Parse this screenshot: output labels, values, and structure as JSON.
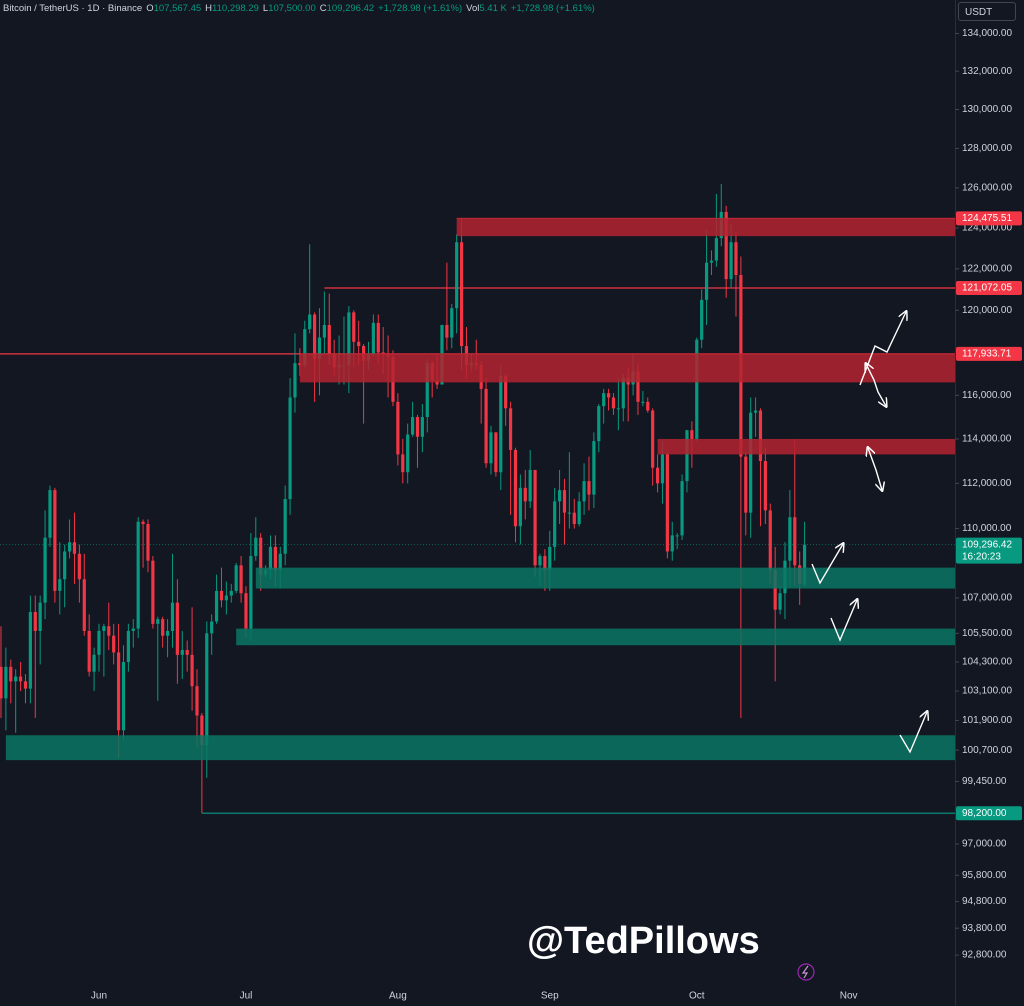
{
  "header": {
    "symbol": "Bitcoin / TetherUS · 1D · Binance",
    "fields": [
      {
        "key": "O",
        "value": "107,567.45"
      },
      {
        "key": "H",
        "value": "110,298.29"
      },
      {
        "key": "L",
        "value": "107,500.00"
      },
      {
        "key": "C",
        "value": "109,296.42"
      },
      {
        "key": "",
        "value": "+1,728.98 (+1.61%)"
      },
      {
        "key": "Vol",
        "value": "5.41 K"
      },
      {
        "key": "",
        "value": "+1,728.98 (+1.61%)"
      }
    ],
    "currency": "USDT"
  },
  "watermark": "@TedPillows",
  "chart_data": {
    "type": "candlestick",
    "log_scale": true,
    "up_color": "#089981",
    "down_color": "#f23645",
    "ylim": [
      91700,
      135800
    ],
    "xlim": [
      0.8,
      195.7
    ],
    "yticks": [
      {
        "value": 134000,
        "label": "134,000.00"
      },
      {
        "value": 132000,
        "label": "132,000.00"
      },
      {
        "value": 130000,
        "label": "130,000.00"
      },
      {
        "value": 128000,
        "label": "128,000.00"
      },
      {
        "value": 126000,
        "label": "126,000.00"
      },
      {
        "value": 124000,
        "label": "124,000.00"
      },
      {
        "value": 122000,
        "label": "122,000.00"
      },
      {
        "value": 120000,
        "label": "120,000.00"
      },
      {
        "value": 116000,
        "label": "116,000.00"
      },
      {
        "value": 114000,
        "label": "114,000.00"
      },
      {
        "value": 112000,
        "label": "112,000.00"
      },
      {
        "value": 110000,
        "label": "110,000.00"
      },
      {
        "value": 107000,
        "label": "107,000.00"
      },
      {
        "value": 105500,
        "label": "105,500.00"
      },
      {
        "value": 104300,
        "label": "104,300.00"
      },
      {
        "value": 103100,
        "label": "103,100.00"
      },
      {
        "value": 101900,
        "label": "101,900.00"
      },
      {
        "value": 100700,
        "label": "100,700.00"
      },
      {
        "value": 99450,
        "label": "99,450.00"
      },
      {
        "value": 97000,
        "label": "97,000.00"
      },
      {
        "value": 95800,
        "label": "95,800.00"
      },
      {
        "value": 94800,
        "label": "94,800.00"
      },
      {
        "value": 93800,
        "label": "93,800.00"
      },
      {
        "value": 92800,
        "label": "92,800.00"
      }
    ],
    "xticks": [
      {
        "value": 21,
        "label": "Jun"
      },
      {
        "value": 51,
        "label": "Jul"
      },
      {
        "value": 82,
        "label": "Aug"
      },
      {
        "value": 113,
        "label": "Sep"
      },
      {
        "value": 143,
        "label": "Oct"
      },
      {
        "value": 174,
        "label": "Nov"
      }
    ],
    "zones": [
      {
        "low": 123600,
        "high": 124500,
        "from": 94,
        "color": "#b3232f"
      },
      {
        "low": 116600,
        "high": 117960,
        "from": 62,
        "color": "#b3232f"
      },
      {
        "low": 113300,
        "high": 114000,
        "from": 135,
        "color": "#b3232f"
      },
      {
        "low": 107400,
        "high": 108300,
        "from": 53,
        "color": "#0b7563"
      },
      {
        "low": 105000,
        "high": 105700,
        "from": 49,
        "color": "#0b7563"
      },
      {
        "low": 100300,
        "high": 101300,
        "from": 2,
        "color": "#0b7563"
      }
    ],
    "levels": [
      {
        "value": 124475.51,
        "label": "124,475.51",
        "from": 94,
        "color": "#f23645"
      },
      {
        "value": 121072.05,
        "label": "121,072.05",
        "from": 67,
        "color": "#f23645"
      },
      {
        "value": 117933.71,
        "label": "117,933.71",
        "from": 0,
        "color": "#f23645"
      },
      {
        "value": 98200,
        "label": "98,200.00",
        "from": 42,
        "color": "#089981"
      }
    ],
    "last_price": {
      "value": 109296.42,
      "label": "109,296.42",
      "countdown": "16:20:23",
      "color": "#089981"
    },
    "candles": [
      [
        104600,
        105000,
        103800,
        104100
      ],
      [
        104100,
        105800,
        102000,
        102800
      ],
      [
        102800,
        104900,
        101500,
        104100
      ],
      [
        104100,
        104400,
        102600,
        103500
      ],
      [
        103500,
        104000,
        101400,
        103700
      ],
      [
        103700,
        104300,
        103100,
        103500
      ],
      [
        103500,
        103800,
        102600,
        103200
      ],
      [
        103200,
        107100,
        102600,
        106400
      ],
      [
        106400,
        107100,
        102000,
        105600
      ],
      [
        105600,
        107100,
        104200,
        106800
      ],
      [
        106800,
        110800,
        106100,
        109600
      ],
      [
        109600,
        111900,
        109200,
        111700
      ],
      [
        111700,
        111800,
        106800,
        107300
      ],
      [
        107300,
        109400,
        106300,
        107800
      ],
      [
        107800,
        109300,
        106600,
        109000
      ],
      [
        109000,
        110400,
        108700,
        109400
      ],
      [
        109400,
        110700,
        107600,
        108900
      ],
      [
        108900,
        109300,
        106800,
        107800
      ],
      [
        107800,
        108900,
        105400,
        105600
      ],
      [
        105600,
        106300,
        103700,
        103900
      ],
      [
        103900,
        104900,
        103100,
        104600
      ],
      [
        104600,
        105900,
        103900,
        105600
      ],
      [
        105600,
        105900,
        103700,
        105800
      ],
      [
        105800,
        106800,
        104800,
        105400
      ],
      [
        105400,
        105900,
        104200,
        104700
      ],
      [
        104700,
        105900,
        100400,
        101500
      ],
      [
        101500,
        105000,
        101100,
        104300
      ],
      [
        104300,
        105900,
        103900,
        105600
      ],
      [
        105600,
        106100,
        104900,
        105700
      ],
      [
        105700,
        110500,
        105300,
        110300
      ],
      [
        110300,
        110400,
        108300,
        110200
      ],
      [
        110200,
        110400,
        108100,
        108600
      ],
      [
        108600,
        108800,
        105700,
        105900
      ],
      [
        105900,
        106200,
        102700,
        106100
      ],
      [
        106100,
        106200,
        104900,
        105400
      ],
      [
        105400,
        106100,
        104500,
        105600
      ],
      [
        105600,
        108900,
        104900,
        106800
      ],
      [
        106800,
        107800,
        103400,
        104600
      ],
      [
        104600,
        105600,
        103600,
        104800
      ],
      [
        104800,
        105200,
        103900,
        104600
      ],
      [
        104600,
        106600,
        102300,
        103300
      ],
      [
        103300,
        104000,
        100800,
        102100
      ],
      [
        102100,
        102200,
        98200,
        100900
      ],
      [
        100900,
        106000,
        99600,
        105500
      ],
      [
        105500,
        106300,
        104600,
        106000
      ],
      [
        106000,
        108000,
        105900,
        107300
      ],
      [
        107300,
        108300,
        106600,
        106900
      ],
      [
        106900,
        107700,
        106300,
        107100
      ],
      [
        107100,
        107600,
        106800,
        107300
      ],
      [
        107300,
        108500,
        107200,
        108400
      ],
      [
        108400,
        108800,
        106800,
        107200
      ],
      [
        107200,
        107500,
        105300,
        105700
      ],
      [
        105700,
        109800,
        105200,
        108800
      ],
      [
        108800,
        110500,
        108600,
        109600
      ],
      [
        109600,
        109800,
        107300,
        108000
      ],
      [
        108000,
        108400,
        107900,
        108200
      ],
      [
        108200,
        109700,
        107800,
        109200
      ],
      [
        109200,
        109700,
        107500,
        108200
      ],
      [
        108200,
        109200,
        107400,
        108900
      ],
      [
        108900,
        111900,
        108400,
        111300
      ],
      [
        111300,
        116800,
        110600,
        115900
      ],
      [
        115900,
        118900,
        115200,
        117500
      ],
      [
        117500,
        118200,
        116900,
        117400
      ],
      [
        117400,
        119500,
        117300,
        119100
      ],
      [
        119100,
        123200,
        118900,
        119800
      ],
      [
        119800,
        119900,
        115700,
        117700
      ],
      [
        117700,
        120100,
        116000,
        118700
      ],
      [
        118700,
        120900,
        117900,
        119300
      ],
      [
        119300,
        120800,
        117400,
        117900
      ],
      [
        117900,
        118600,
        116900,
        117300
      ],
      [
        117300,
        118800,
        116500,
        117400
      ],
      [
        117400,
        119700,
        116500,
        117400
      ],
      [
        117400,
        120200,
        116100,
        119900
      ],
      [
        119900,
        120000,
        117300,
        118500
      ],
      [
        118500,
        119500,
        117400,
        118300
      ],
      [
        118300,
        118400,
        114700,
        117600
      ],
      [
        117600,
        118500,
        117200,
        117900
      ],
      [
        117900,
        119800,
        117800,
        119400
      ],
      [
        119400,
        119800,
        117500,
        118000
      ],
      [
        118000,
        119200,
        117000,
        117900
      ],
      [
        117900,
        118800,
        115900,
        117800
      ],
      [
        117800,
        118100,
        115500,
        115700
      ],
      [
        115700,
        116100,
        112800,
        113300
      ],
      [
        113300,
        114000,
        112000,
        112500
      ],
      [
        112500,
        114700,
        112000,
        114200
      ],
      [
        114200,
        115700,
        114100,
        115000
      ],
      [
        115000,
        115100,
        112700,
        114100
      ],
      [
        114100,
        115600,
        113400,
        115000
      ],
      [
        115000,
        117700,
        114300,
        117500
      ],
      [
        117500,
        117600,
        115900,
        116700
      ],
      [
        116700,
        117900,
        116300,
        116500
      ],
      [
        116500,
        119300,
        116500,
        119300
      ],
      [
        119300,
        122300,
        118100,
        118700
      ],
      [
        118700,
        120300,
        118200,
        120100
      ],
      [
        120100,
        123700,
        118900,
        123300
      ],
      [
        123300,
        124500,
        117200,
        118300
      ],
      [
        118300,
        119200,
        116800,
        117400
      ],
      [
        117400,
        117900,
        117100,
        117500
      ],
      [
        117500,
        118600,
        117200,
        117400
      ],
      [
        117400,
        117600,
        114700,
        116300
      ],
      [
        116300,
        116800,
        112700,
        112900
      ],
      [
        112900,
        114600,
        112400,
        114300
      ],
      [
        114300,
        114300,
        112300,
        112500
      ],
      [
        112500,
        117400,
        111700,
        116900
      ],
      [
        116900,
        117000,
        114600,
        115400
      ],
      [
        115400,
        115700,
        110600,
        113500
      ],
      [
        113500,
        113600,
        109400,
        110100
      ],
      [
        110100,
        112400,
        109300,
        111800
      ],
      [
        111800,
        112600,
        110400,
        111200
      ],
      [
        111200,
        113500,
        110900,
        112600
      ],
      [
        112600,
        112600,
        107900,
        108400
      ],
      [
        108400,
        108900,
        107500,
        108800
      ],
      [
        108800,
        109100,
        107300,
        108200
      ],
      [
        108200,
        109900,
        107300,
        109200
      ],
      [
        109200,
        111800,
        108600,
        111200
      ],
      [
        111200,
        112600,
        110200,
        111700
      ],
      [
        111700,
        112200,
        109300,
        110700
      ],
      [
        110700,
        113400,
        110000,
        110700
      ],
      [
        110700,
        111300,
        110000,
        110200
      ],
      [
        110200,
        111600,
        110100,
        111200
      ],
      [
        111200,
        112900,
        110600,
        112100
      ],
      [
        112100,
        113200,
        110800,
        111500
      ],
      [
        111500,
        114300,
        110900,
        113900
      ],
      [
        113900,
        115600,
        113400,
        115500
      ],
      [
        115500,
        116300,
        114700,
        116100
      ],
      [
        116100,
        116300,
        115300,
        115900
      ],
      [
        115900,
        116100,
        115100,
        115400
      ],
      [
        115400,
        116800,
        114400,
        115400
      ],
      [
        115400,
        117000,
        114800,
        116800
      ],
      [
        116800,
        117300,
        114800,
        116500
      ],
      [
        116500,
        117900,
        116000,
        117100
      ],
      [
        117100,
        117500,
        115100,
        115700
      ],
      [
        115700,
        116200,
        115500,
        115700
      ],
      [
        115700,
        115900,
        115200,
        115300
      ],
      [
        115300,
        115400,
        111900,
        112700
      ],
      [
        112700,
        113300,
        111600,
        112000
      ],
      [
        112000,
        113900,
        111100,
        113300
      ],
      [
        113300,
        113400,
        108700,
        109000
      ],
      [
        109000,
        110300,
        108600,
        109700
      ],
      [
        109700,
        109800,
        109100,
        109700
      ],
      [
        109700,
        112400,
        109500,
        112100
      ],
      [
        112100,
        114400,
        111600,
        114400
      ],
      [
        114400,
        114800,
        112700,
        114000
      ],
      [
        114000,
        118700,
        113900,
        118600
      ],
      [
        118600,
        121000,
        118200,
        120500
      ],
      [
        120500,
        123900,
        119300,
        122300
      ],
      [
        122300,
        122900,
        121700,
        122400
      ],
      [
        122400,
        125700,
        122100,
        123500
      ],
      [
        123500,
        126200,
        123100,
        124800
      ],
      [
        124800,
        125100,
        120600,
        121500
      ],
      [
        121500,
        124200,
        121100,
        123300
      ],
      [
        123300,
        123800,
        119700,
        121700
      ],
      [
        121700,
        122600,
        102000,
        113200
      ],
      [
        113200,
        113400,
        109700,
        110700
      ],
      [
        110700,
        115900,
        109600,
        115200
      ],
      [
        115200,
        115900,
        114100,
        115300
      ],
      [
        115300,
        115400,
        110100,
        113000
      ],
      [
        113000,
        113600,
        110200,
        110800
      ],
      [
        110800,
        111100,
        107600,
        108200
      ],
      [
        108200,
        109200,
        103500,
        106500
      ],
      [
        106500,
        107500,
        106300,
        107200
      ],
      [
        107200,
        109400,
        106100,
        108600
      ],
      [
        108600,
        111700,
        107500,
        110500
      ],
      [
        110500,
        114000,
        107500,
        108400
      ],
      [
        108400,
        109000,
        106700,
        107600
      ],
      [
        107567.45,
        110298.29,
        107500,
        109296.42
      ]
    ]
  }
}
